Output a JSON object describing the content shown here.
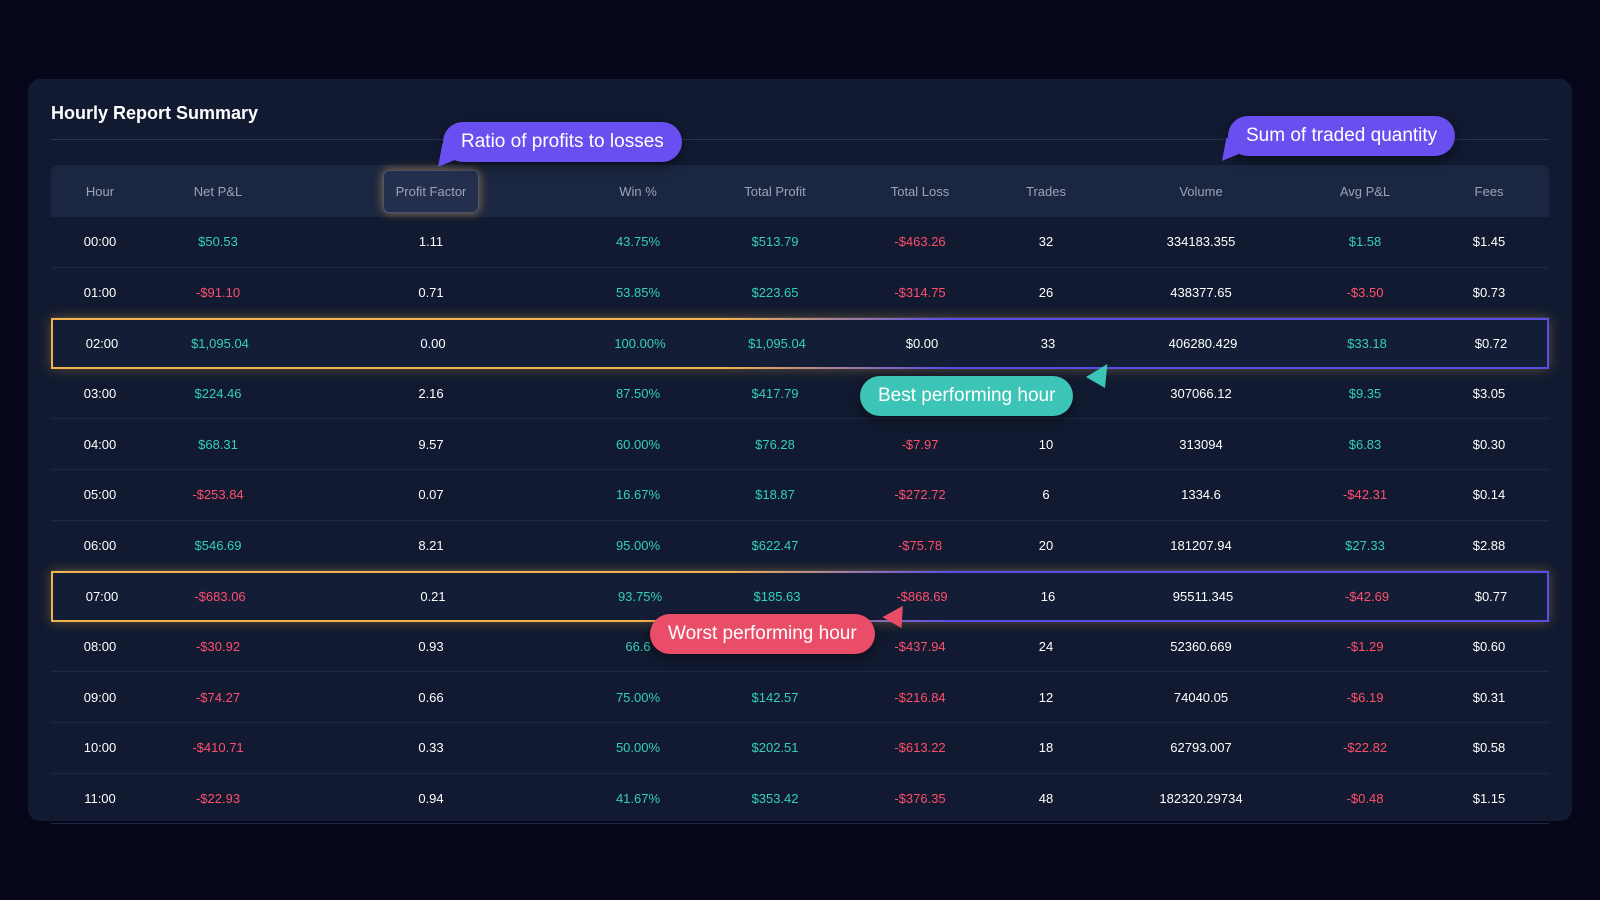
{
  "report": {
    "title": "Hourly Report Summary",
    "columns": [
      "Hour",
      "Net P&L",
      "Profit Factor",
      "Win %",
      "Total Profit",
      "Total Loss",
      "Trades",
      "Volume",
      "Avg P&L",
      "Fees"
    ],
    "rows": [
      [
        "00:00",
        "$50.53",
        "1.11",
        "43.75%",
        "$513.79",
        "-$463.26",
        "32",
        "334183.355",
        "$1.58",
        "$1.45"
      ],
      [
        "01:00",
        "-$91.10",
        "0.71",
        "53.85%",
        "$223.65",
        "-$314.75",
        "26",
        "438377.65",
        "-$3.50",
        "$0.73"
      ],
      [
        "02:00",
        "$1,095.04",
        "0.00",
        "100.00%",
        "$1,095.04",
        "$0.00",
        "33",
        "406280.429",
        "$33.18",
        "$0.72"
      ],
      [
        "03:00",
        "$224.46",
        "2.16",
        "87.50%",
        "$417.79",
        "",
        "",
        "307066.12",
        "$9.35",
        "$3.05"
      ],
      [
        "04:00",
        "$68.31",
        "9.57",
        "60.00%",
        "$76.28",
        "-$7.97",
        "10",
        "313094",
        "$6.83",
        "$0.30"
      ],
      [
        "05:00",
        "-$253.84",
        "0.07",
        "16.67%",
        "$18.87",
        "-$272.72",
        "6",
        "1334.6",
        "-$42.31",
        "$0.14"
      ],
      [
        "06:00",
        "$546.69",
        "8.21",
        "95.00%",
        "$622.47",
        "-$75.78",
        "20",
        "181207.94",
        "$27.33",
        "$2.88"
      ],
      [
        "07:00",
        "-$683.06",
        "0.21",
        "93.75%",
        "$185.63",
        "-$868.69",
        "16",
        "95511.345",
        "-$42.69",
        "$0.77"
      ],
      [
        "08:00",
        "-$30.92",
        "0.93",
        "66.6",
        "",
        "-$437.94",
        "24",
        "52360.669",
        "-$1.29",
        "$0.60"
      ],
      [
        "09:00",
        "-$74.27",
        "0.66",
        "75.00%",
        "$142.57",
        "-$216.84",
        "12",
        "74040.05",
        "-$6.19",
        "$0.31"
      ],
      [
        "10:00",
        "-$410.71",
        "0.33",
        "50.00%",
        "$202.51",
        "-$613.22",
        "18",
        "62793.007",
        "-$22.82",
        "$0.58"
      ],
      [
        "11:00",
        "-$22.93",
        "0.94",
        "41.67%",
        "$353.42",
        "-$376.35",
        "48",
        "182320.29734",
        "-$0.48",
        "$1.15"
      ]
    ],
    "best_row_index": 2,
    "worst_row_index": 7
  },
  "callouts": {
    "profit_factor": "Ratio of profits to losses",
    "volume": "Sum of traded quantity",
    "best": "Best performing hour",
    "worst": "Worst performing hour"
  },
  "colors": {
    "positive": "#33d1b5",
    "negative": "#ff4f6d",
    "highlight_gold": "#f2b24b",
    "callout_purple": "#6a4ff0",
    "callout_teal": "#3cc4b6",
    "callout_red": "#ea4d67"
  }
}
